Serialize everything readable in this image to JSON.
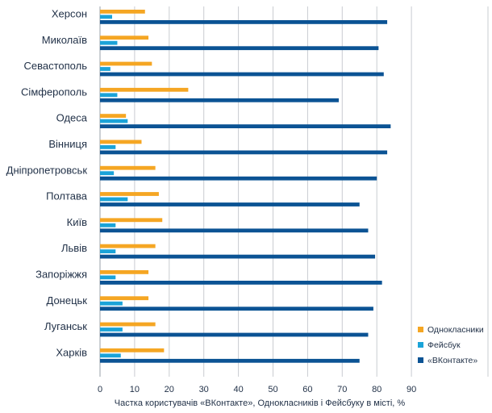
{
  "chart_data": {
    "type": "bar",
    "orientation": "horizontal",
    "categories": [
      "Херсон",
      "Миколаїв",
      "Севастополь",
      "Сімферополь",
      "Одеса",
      "Вінниця",
      "Дніпропетровськ",
      "Полтава",
      "Київ",
      "Львів",
      "Запоріжжя",
      "Донецьк",
      "Луганськ",
      "Харків"
    ],
    "series": [
      {
        "name": "Однокласники",
        "color": "#f5a623",
        "values": [
          13,
          14,
          15,
          25.5,
          7.5,
          12,
          16,
          17,
          18,
          16,
          14,
          14,
          16,
          18.5
        ]
      },
      {
        "name": "Фейсбук",
        "color": "#1ba3d8",
        "values": [
          3.5,
          5,
          3,
          5,
          8,
          4.5,
          4,
          8,
          4.5,
          4.5,
          4.5,
          6.5,
          6.5,
          6
        ]
      },
      {
        "name": "«ВКонтакте»",
        "color": "#0b5394",
        "values": [
          83,
          80.5,
          82,
          69,
          84,
          83,
          80,
          75,
          77.5,
          79.5,
          81.5,
          79,
          77.5,
          75
        ]
      }
    ],
    "xlabel": "Частка користувачів «ВКонтакте», Однокласників і Фейсбуку в місті, %",
    "ylabel": "",
    "xlim": [
      0,
      90
    ],
    "xticks": [
      0,
      10,
      20,
      30,
      40,
      50,
      60,
      70,
      80,
      90
    ],
    "grid": true,
    "legend_position": "bottom-right"
  }
}
